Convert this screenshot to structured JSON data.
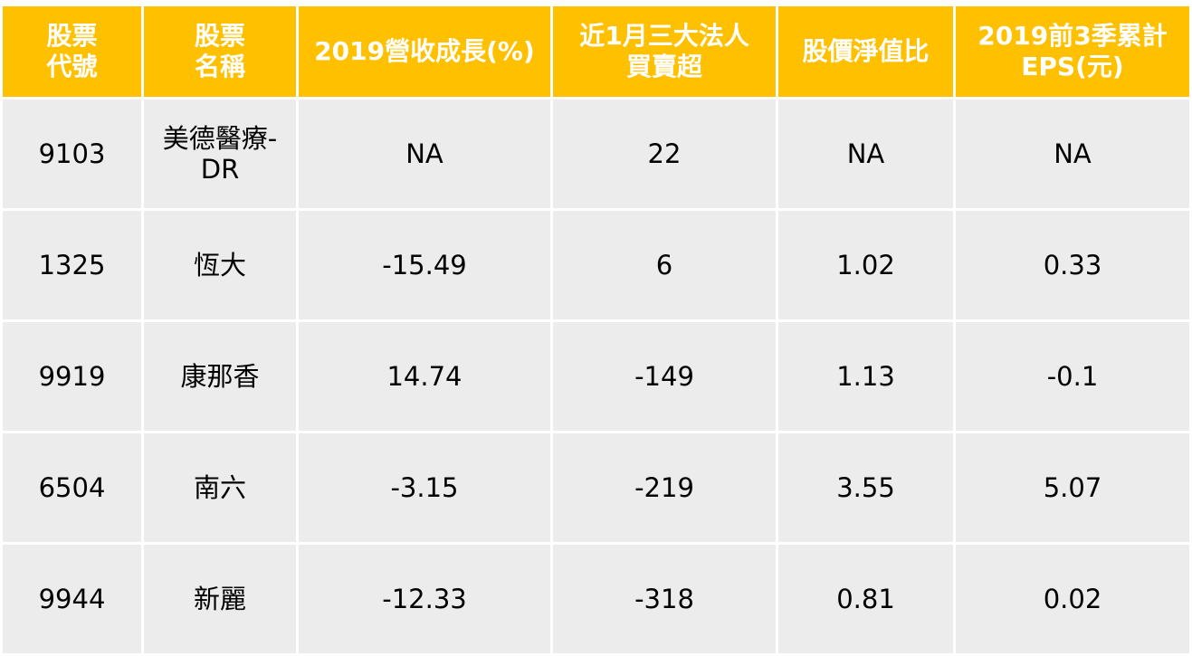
{
  "table": {
    "headers": [
      "股票\n代號",
      "股票\n名稱",
      "2019營收成長(%)",
      "近1月三大法人\n買賣超",
      "股價淨值比",
      "2019前3季累計\nEPS(元)"
    ],
    "rows": [
      [
        "9103",
        "美德醫療-DR",
        "NA",
        "22",
        "NA",
        "NA"
      ],
      [
        "1325",
        "恆大",
        "-15.49",
        "6",
        "1.02",
        "0.33"
      ],
      [
        "9919",
        "康那香",
        "14.74",
        "-149",
        "1.13",
        "-0.1"
      ],
      [
        "6504",
        "南六",
        "-3.15",
        "-219",
        "3.55",
        "5.07"
      ],
      [
        "9944",
        "新麗",
        "-12.33",
        "-318",
        "0.81",
        "0.02"
      ]
    ],
    "colors": {
      "header_bg": "#ffc000",
      "header_text": "#ffffff",
      "cell_bg": "#ececec"
    }
  }
}
